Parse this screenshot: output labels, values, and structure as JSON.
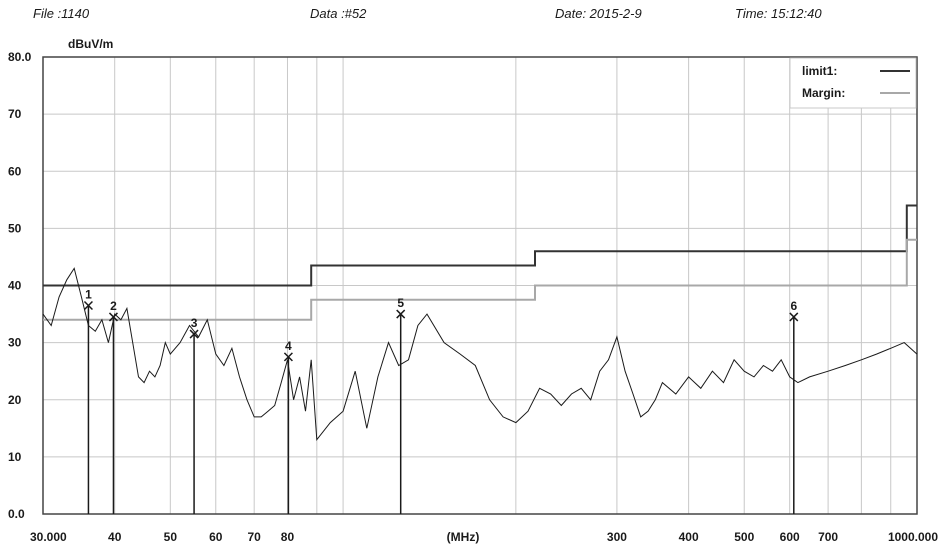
{
  "header": {
    "file": "File :1140",
    "data": "Data :#52",
    "date": "Date: 2015-2-9",
    "time": "Time: 15:12:40"
  },
  "chart_data": {
    "type": "line",
    "title": "",
    "ylabel": "dBuV/m",
    "xlabel": "(MHz)",
    "x_scale": "log",
    "xlim": [
      30,
      1000
    ],
    "ylim": [
      0,
      80
    ],
    "grid": true,
    "legend_position": "top-right",
    "y_ticks": [
      "80.0",
      "70",
      "60",
      "50",
      "40",
      "30",
      "20",
      "10",
      "0.0"
    ],
    "x_ticks": [
      {
        "label": "30.000",
        "value": 30
      },
      {
        "label": "40",
        "value": 40
      },
      {
        "label": "50",
        "value": 50
      },
      {
        "label": "60",
        "value": 60
      },
      {
        "label": "70",
        "value": 70
      },
      {
        "label": "80",
        "value": 80
      },
      {
        "label": "300",
        "value": 300
      },
      {
        "label": "400",
        "value": 400
      },
      {
        "label": "500",
        "value": 500
      },
      {
        "label": "600",
        "value": 600
      },
      {
        "label": "700",
        "value": 700
      },
      {
        "label": "1000.000",
        "value": 1000
      }
    ],
    "series": [
      {
        "name": "limit1:",
        "color": "#333333",
        "x": [
          30,
          88,
          88,
          216,
          216,
          960,
          960,
          1000
        ],
        "y": [
          40,
          40,
          43.5,
          43.5,
          46,
          46,
          54,
          54
        ]
      },
      {
        "name": "Margin:",
        "color": "#a8a8a8",
        "x": [
          30,
          88,
          88,
          216,
          216,
          960,
          960,
          1000
        ],
        "y": [
          34,
          34,
          37.5,
          37.5,
          40,
          40,
          48,
          48
        ]
      },
      {
        "name": "",
        "color": "#1a1a1a",
        "x": [
          30,
          31,
          32,
          33,
          34,
          35,
          36,
          37,
          38,
          39,
          40,
          41,
          42,
          43,
          44,
          45,
          46,
          47,
          48,
          49,
          50,
          52,
          54,
          56,
          58,
          60,
          62,
          64,
          66,
          68,
          70,
          72,
          74,
          76,
          78,
          80,
          82,
          84,
          86,
          88,
          90,
          95,
          100,
          105,
          110,
          115,
          120,
          125,
          130,
          135,
          140,
          150,
          160,
          170,
          180,
          190,
          200,
          210,
          220,
          230,
          240,
          250,
          260,
          270,
          280,
          290,
          300,
          310,
          320,
          330,
          340,
          350,
          360,
          380,
          400,
          420,
          440,
          460,
          480,
          500,
          520,
          540,
          560,
          580,
          600,
          620,
          650,
          700,
          750,
          800,
          850,
          900,
          950,
          1000
        ],
        "y": [
          35,
          33,
          38,
          41,
          43,
          38,
          33,
          32,
          34,
          30,
          35,
          34,
          36,
          30,
          24,
          23,
          25,
          24,
          26,
          30,
          28,
          30,
          33,
          31,
          34,
          28,
          26,
          29,
          24,
          20,
          17,
          17,
          18,
          19,
          23,
          27,
          20,
          24,
          18,
          27,
          13,
          16,
          18,
          25,
          15,
          24,
          30,
          26,
          27,
          33,
          35,
          30,
          28,
          26,
          20,
          17,
          16,
          18,
          22,
          21,
          19,
          21,
          22,
          20,
          25,
          27,
          31,
          25,
          21,
          17,
          18,
          20,
          23,
          21,
          24,
          22,
          25,
          23,
          27,
          25,
          24,
          26,
          25,
          27,
          24,
          23,
          24,
          25,
          26,
          27,
          28,
          29,
          30,
          28
        ]
      }
    ],
    "markers": [
      {
        "label": "1",
        "x": 36,
        "y": 36.5
      },
      {
        "label": "2",
        "x": 39.8,
        "y": 34.5
      },
      {
        "label": "3",
        "x": 55,
        "y": 31.5
      },
      {
        "label": "4",
        "x": 80.3,
        "y": 27.5
      },
      {
        "label": "5",
        "x": 126,
        "y": 35
      },
      {
        "label": "6",
        "x": 610,
        "y": 34.5
      }
    ]
  }
}
